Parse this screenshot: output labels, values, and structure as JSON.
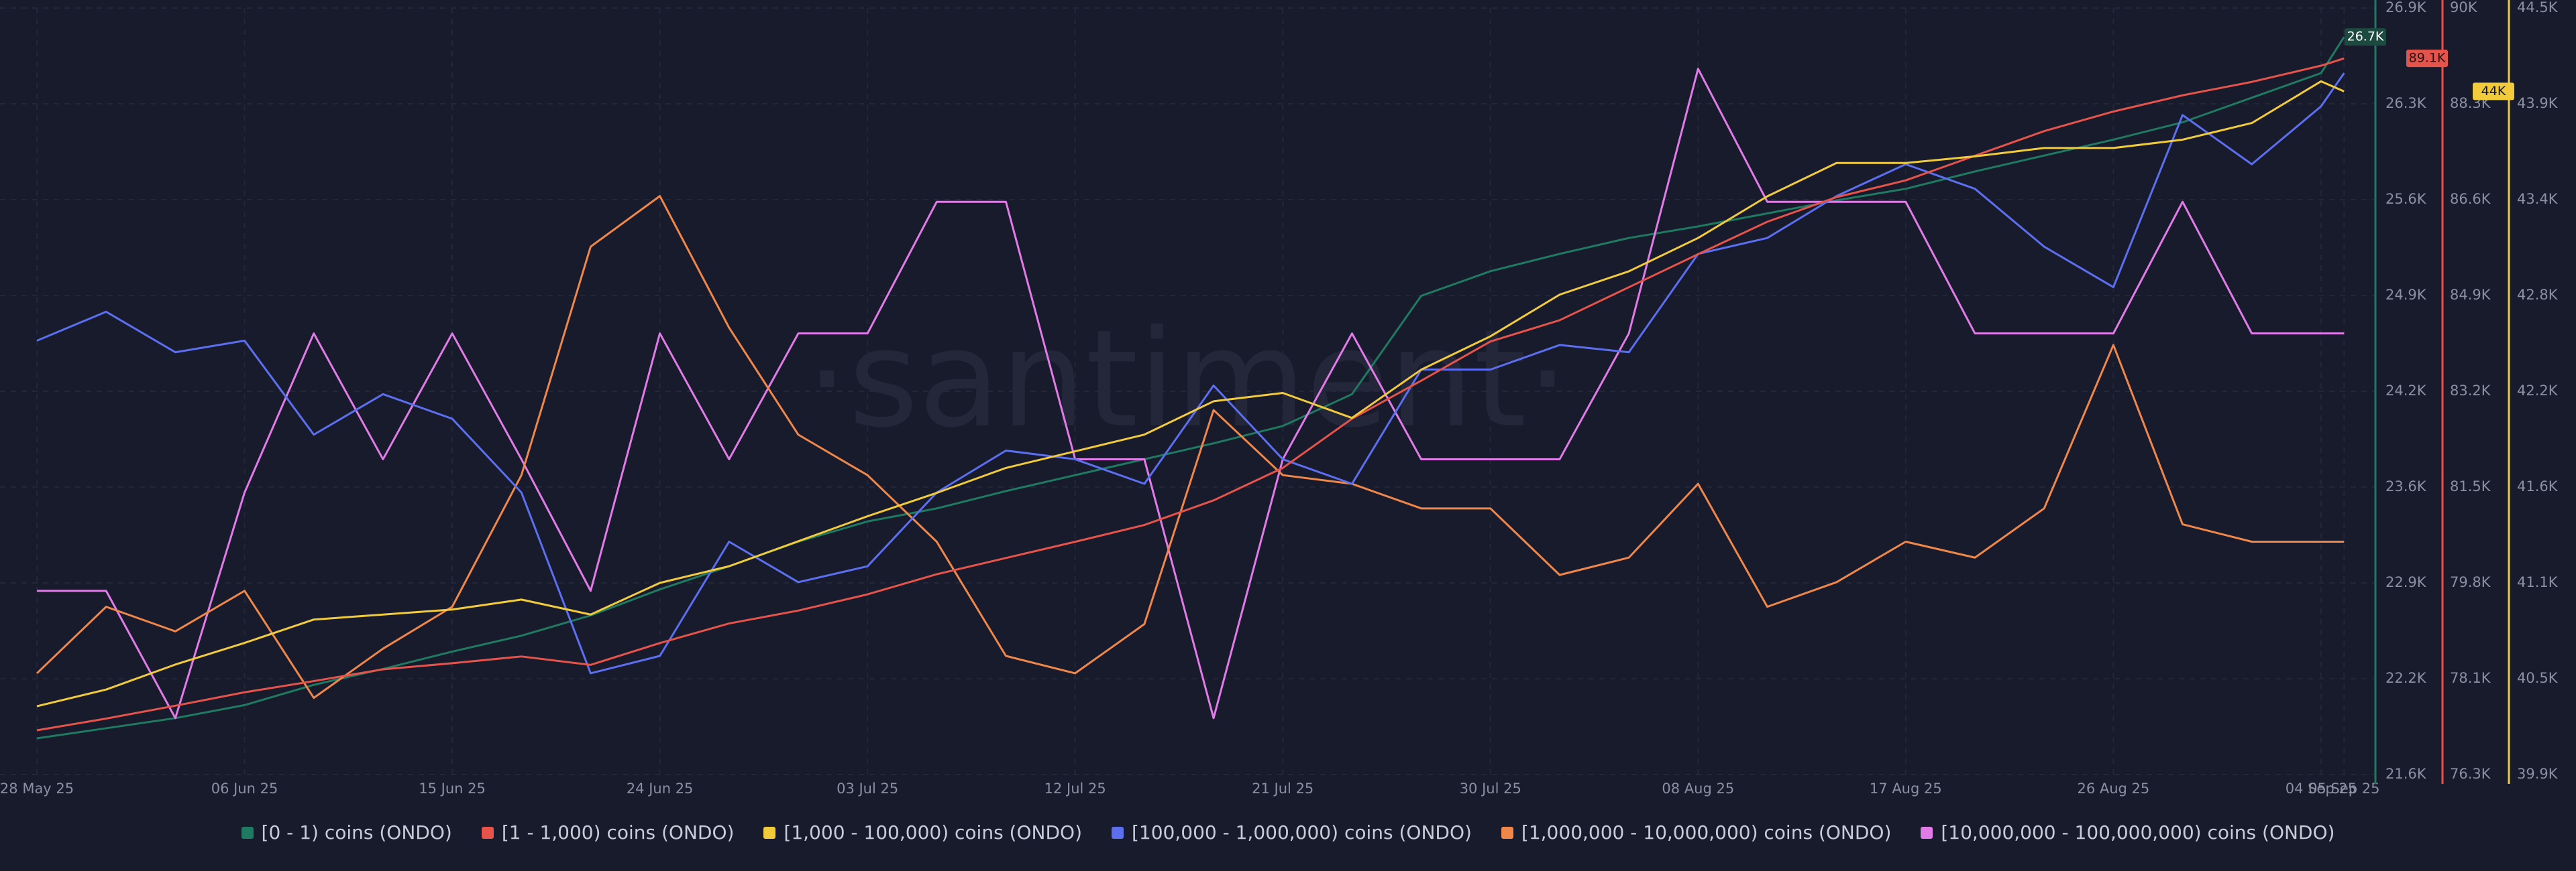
{
  "chart_data": {
    "type": "line",
    "watermark": "·santiment·",
    "x": [
      0,
      3,
      6,
      9,
      12,
      15,
      18,
      21,
      24,
      27,
      30,
      33,
      36,
      39,
      42,
      45,
      48,
      51,
      54,
      57,
      60,
      63,
      66,
      69,
      72,
      75,
      78,
      81,
      84,
      87,
      90,
      93,
      96,
      99,
      100
    ],
    "xlim": [
      -1.6,
      101.3
    ],
    "xticks": [
      {
        "value": 0,
        "label": "28 May 25"
      },
      {
        "value": 9,
        "label": "06 Jun 25"
      },
      {
        "value": 18,
        "label": "15 Jun 25"
      },
      {
        "value": 27,
        "label": "24 Jun 25"
      },
      {
        "value": 36,
        "label": "03 Jul 25"
      },
      {
        "value": 45,
        "label": "12 Jul 25"
      },
      {
        "value": 54,
        "label": "21 Jul 25"
      },
      {
        "value": 63,
        "label": "30 Jul 25"
      },
      {
        "value": 72,
        "label": "08 Aug 25"
      },
      {
        "value": 81,
        "label": "17 Aug 25"
      },
      {
        "value": 90,
        "label": "26 Aug 25"
      },
      {
        "value": 99,
        "label": "04 Sep 25"
      },
      {
        "value": 100,
        "label": "05 Sep 25"
      }
    ],
    "ylim": [
      21600,
      26900
    ],
    "yticks": [
      {
        "value": 21600,
        "label": "21.6K"
      },
      {
        "value": 22262,
        "label": "22.2K"
      },
      {
        "value": 22925,
        "label": "22.9K"
      },
      {
        "value": 23588,
        "label": "23.6K"
      },
      {
        "value": 24250,
        "label": "24.2K"
      },
      {
        "value": 24912,
        "label": "24.9K"
      },
      {
        "value": 25575,
        "label": "25.6K"
      },
      {
        "value": 26238,
        "label": "26.3K"
      },
      {
        "value": 26900,
        "label": "26.9K"
      }
    ],
    "y2lim": [
      76300,
      90000
    ],
    "y2ticks": [
      {
        "value": 76300,
        "label": "76.3K"
      },
      {
        "value": 78012,
        "label": "78.1K"
      },
      {
        "value": 79725,
        "label": "79.8K"
      },
      {
        "value": 81438,
        "label": "81.5K"
      },
      {
        "value": 83150,
        "label": "83.2K"
      },
      {
        "value": 84862,
        "label": "84.9K"
      },
      {
        "value": 86575,
        "label": "86.6K"
      },
      {
        "value": 88288,
        "label": "88.3K"
      },
      {
        "value": 90000,
        "label": "90K"
      }
    ],
    "y3lim": [
      39900,
      44500
    ],
    "y3ticks": [
      {
        "value": 39900,
        "label": "39.9K"
      },
      {
        "value": 40475,
        "label": "40.5K"
      },
      {
        "value": 41050,
        "label": "41.1K"
      },
      {
        "value": 41625,
        "label": "41.6K"
      },
      {
        "value": 42200,
        "label": "42.2K"
      },
      {
        "value": 42775,
        "label": "42.8K"
      },
      {
        "value": 43350,
        "label": "43.4K"
      },
      {
        "value": 43925,
        "label": "43.9K"
      },
      {
        "value": 44500,
        "label": "44.5K"
      }
    ],
    "grid": true,
    "series": [
      {
        "name": "[0 - 1) coins (ONDO)",
        "color": "#1f7a62",
        "axis": "y",
        "last_value_label": "26.7K",
        "values": [
          21850,
          21920,
          21990,
          22080,
          22220,
          22330,
          22450,
          22560,
          22700,
          22880,
          23040,
          23210,
          23350,
          23440,
          23560,
          23670,
          23780,
          23890,
          24010,
          24230,
          24910,
          25080,
          25200,
          25310,
          25390,
          25480,
          25570,
          25650,
          25770,
          25880,
          25990,
          26110,
          26280,
          26450,
          26700
        ]
      },
      {
        "name": "[1 - 1,000) coins (ONDO)",
        "color": "#e5534b",
        "axis": "y2",
        "last_value_label": "89.1K",
        "values": [
          77090,
          77300,
          77530,
          77770,
          77970,
          78180,
          78290,
          78410,
          78260,
          78650,
          79000,
          79230,
          79520,
          79880,
          80170,
          80460,
          80760,
          81200,
          81780,
          82660,
          83340,
          84040,
          84420,
          85010,
          85600,
          86180,
          86620,
          86920,
          87360,
          87800,
          88150,
          88440,
          88680,
          88970,
          89100
        ]
      },
      {
        "name": "[1,000 - 100,000) coins (ONDO)",
        "color": "#f2cb3c",
        "axis": "y3",
        "last_value_label": "44K",
        "values": [
          40310,
          40410,
          40560,
          40690,
          40830,
          40860,
          40890,
          40950,
          40860,
          41050,
          41150,
          41300,
          41450,
          41590,
          41740,
          41840,
          41940,
          42140,
          42190,
          42040,
          42330,
          42530,
          42780,
          42920,
          43120,
          43370,
          43570,
          43570,
          43610,
          43660,
          43660,
          43710,
          43810,
          44060,
          44000
        ]
      },
      {
        "name": "[100,000  - 1,000,000) coins (ONDO)",
        "color": "#5b6ff0",
        "axis": "y",
        "values": [
          24600,
          24800,
          24520,
          24600,
          23950,
          24230,
          24060,
          23550,
          22300,
          22420,
          23210,
          22930,
          23040,
          23550,
          23840,
          23780,
          23610,
          24290,
          23780,
          23610,
          24400,
          24400,
          24570,
          24520,
          25200,
          25310,
          25600,
          25820,
          25650,
          25250,
          24970,
          26160,
          25820,
          26220,
          26450
        ]
      },
      {
        "name": "[1,000,000 - 10,000,000) coins (ONDO)",
        "color": "#f0874a",
        "axis": "y",
        "values": [
          22300,
          22760,
          22590,
          22870,
          22130,
          22470,
          22760,
          23670,
          25250,
          25600,
          24690,
          23950,
          23670,
          23210,
          22420,
          22300,
          22640,
          24120,
          23670,
          23610,
          23440,
          23440,
          22980,
          23100,
          23610,
          22760,
          22930,
          23210,
          23100,
          23440,
          24570,
          23330,
          23210,
          23210,
          23210
        ]
      },
      {
        "name": "[10,000,000 - 100,000,000) coins (ONDO)",
        "color": "#e07be8",
        "axis": "y",
        "values": [
          22870,
          22870,
          21990,
          23550,
          24650,
          23780,
          24650,
          23780,
          22870,
          24650,
          23780,
          24650,
          24650,
          25560,
          25560,
          23780,
          23780,
          21990,
          23780,
          24650,
          23780,
          23780,
          23780,
          24650,
          26480,
          25560,
          25560,
          25560,
          24650,
          24650,
          24650,
          25560,
          24650,
          24650,
          24650
        ]
      }
    ]
  }
}
